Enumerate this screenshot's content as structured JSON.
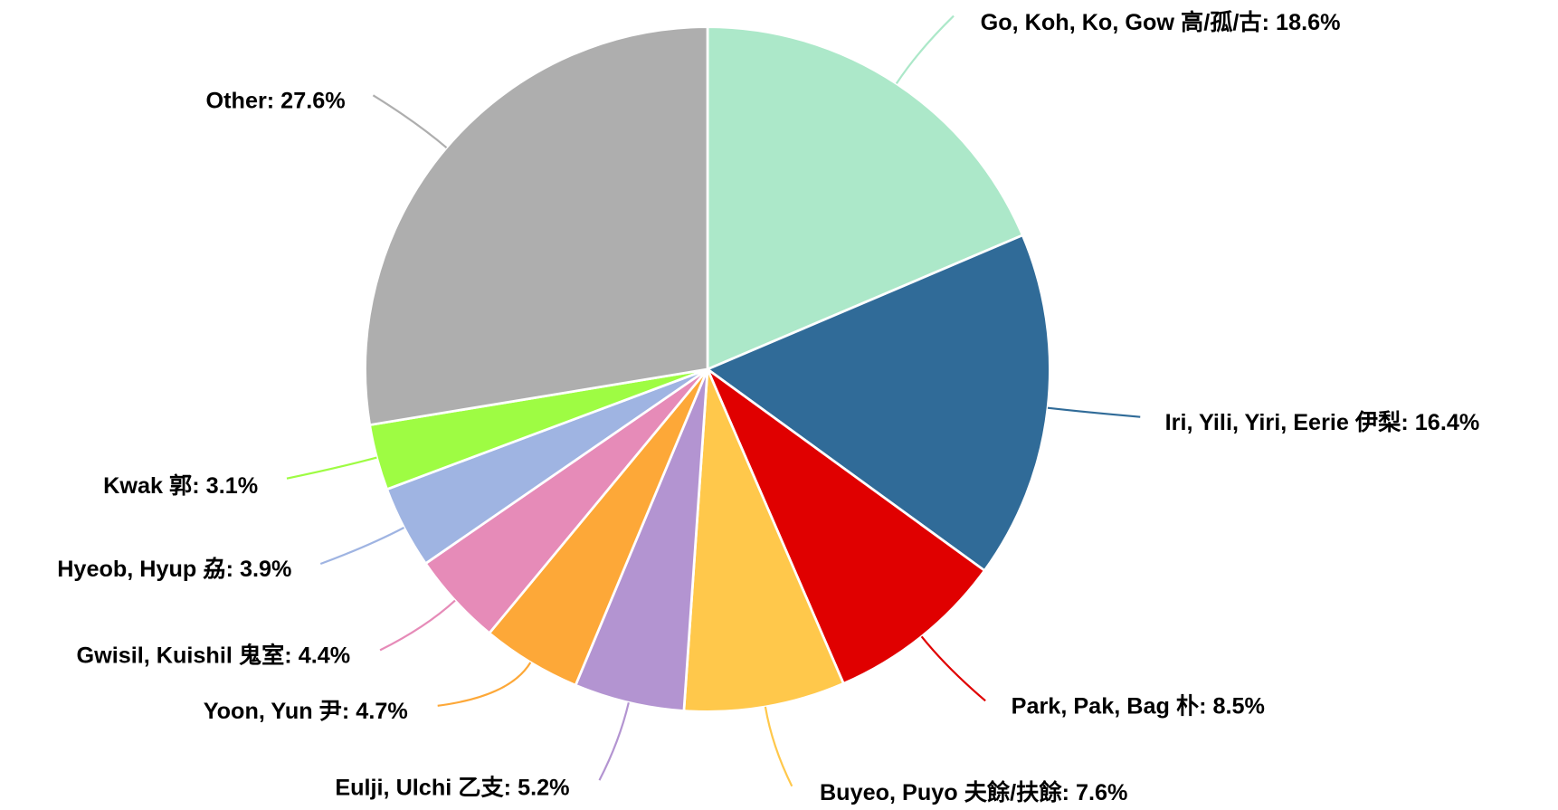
{
  "chart_data": {
    "type": "pie",
    "start": "top",
    "direction": "clockwise",
    "slices": [
      {
        "label": "Go, Koh, Ko, Gow 高/孤/古",
        "value": 18.6,
        "display": "Go, Koh, Ko, Gow 高/孤/古: 18.6%",
        "color": "#ace8c9"
      },
      {
        "label": "Iri, Yili, Yiri, Eerie 伊梨",
        "value": 16.4,
        "display": "Iri, Yili, Yiri, Eerie 伊梨: 16.4%",
        "color": "#306b98"
      },
      {
        "label": "Park, Pak, Bag 朴",
        "value": 8.5,
        "display": "Park, Pak, Bag 朴: 8.5%",
        "color": "#e00000"
      },
      {
        "label": "Buyeo, Puyo 夫餘/扶餘",
        "value": 7.6,
        "display": "Buyeo, Puyo 夫餘/扶餘: 7.6%",
        "color": "#ffc84b"
      },
      {
        "label": "Eulji, Ulchi 乙支",
        "value": 5.2,
        "display": "Eulji, Ulchi 乙支: 5.2%",
        "color": "#b394d1"
      },
      {
        "label": "Yoon, Yun 尹",
        "value": 4.7,
        "display": "Yoon, Yun 尹: 4.7%",
        "color": "#fda838"
      },
      {
        "label": "Gwisil, Kuishil 鬼室",
        "value": 4.4,
        "display": "Gwisil, Kuishil 鬼室: 4.4%",
        "color": "#e68bb8"
      },
      {
        "label": "Hyeob, Hyup 劦",
        "value": 3.9,
        "display": "Hyeob, Hyup 劦: 3.9%",
        "color": "#9fb4e2"
      },
      {
        "label": "Kwak 郭",
        "value": 3.1,
        "display": "Kwak 郭: 3.1%",
        "color": "#9efc43"
      },
      {
        "label": "Other",
        "value": 27.6,
        "display": "Other: 27.6%",
        "color": "#aeaeae"
      }
    ]
  }
}
